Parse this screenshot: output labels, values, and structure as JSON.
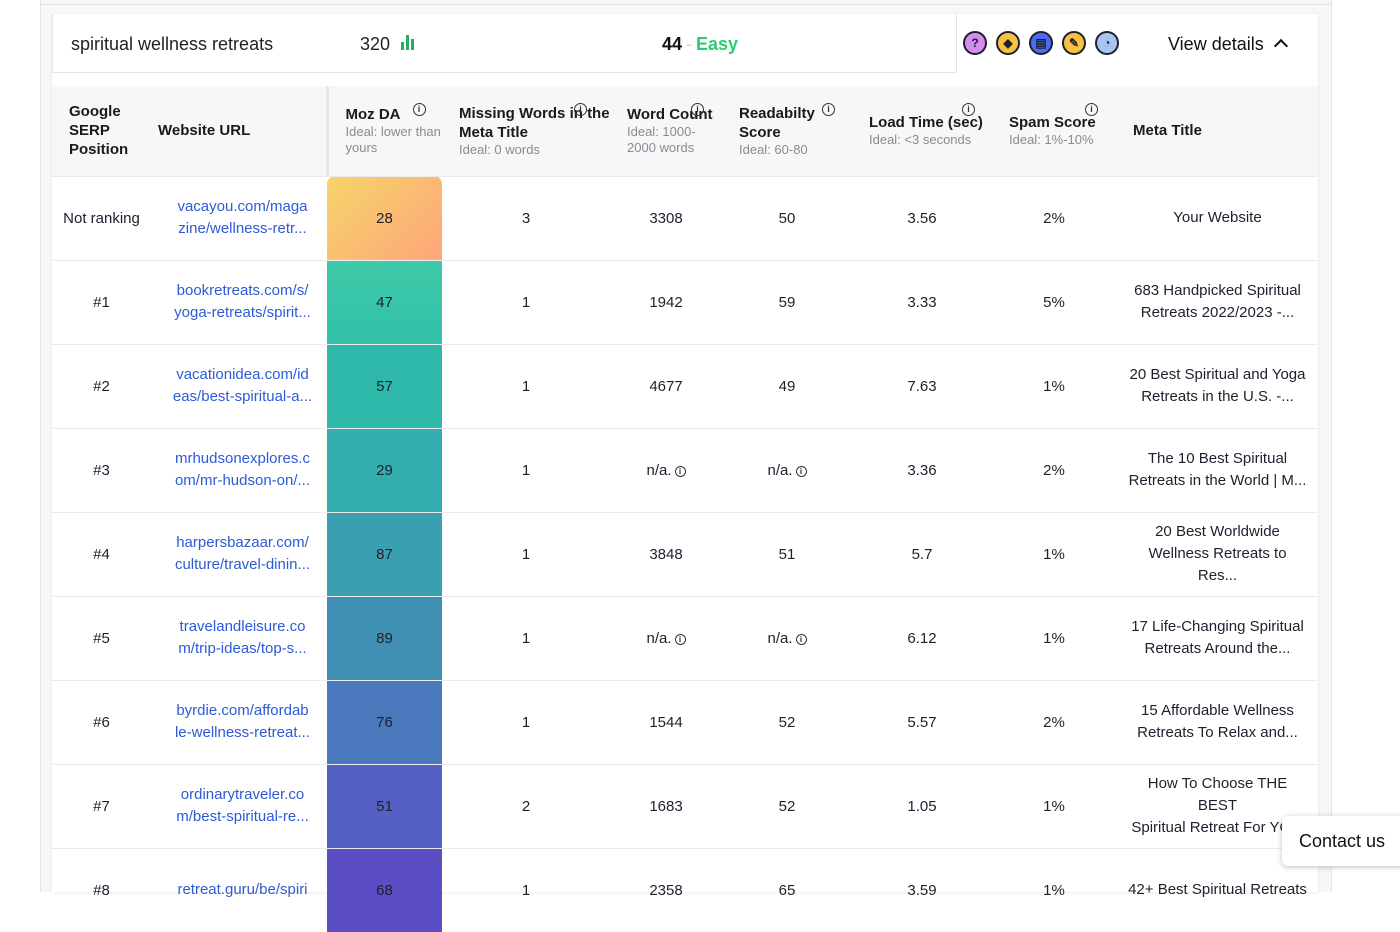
{
  "keyword": {
    "text": "spiritual wellness retreats",
    "volume": "320",
    "difficulty": "44",
    "difficulty_label": "Easy",
    "view_details": "View details"
  },
  "tools": [
    {
      "icon": "question-icon",
      "glyph": "?",
      "color": "#d38cf0"
    },
    {
      "icon": "diamond-sign-icon",
      "glyph": "◆",
      "color": "#f5c242"
    },
    {
      "icon": "document-alert-icon",
      "glyph": "▤",
      "color": "#4a6cf0"
    },
    {
      "icon": "eraser-icon",
      "glyph": "✎",
      "color": "#f5c242"
    },
    {
      "icon": "speed-gauge-icon",
      "glyph": "◔",
      "color": "#a8c4f0"
    }
  ],
  "columns": {
    "position": "Google SERP Position",
    "url": "Website URL",
    "moz": {
      "label": "Moz DA",
      "ideal": "Ideal: lower than yours"
    },
    "missing": {
      "label": "Missing Words in the Meta Title",
      "ideal": "Ideal: 0 words"
    },
    "words": {
      "label": "Word Count",
      "ideal": "Ideal: 1000-2000 words"
    },
    "read": {
      "label": "Readabilty Score",
      "ideal": "Ideal: 60-80"
    },
    "load": {
      "label": "Load Time (sec)",
      "ideal": "Ideal: <3 seconds"
    },
    "spam": {
      "label": "Spam Score",
      "ideal": "Ideal: 1%-10%"
    },
    "meta": "Meta Title"
  },
  "rows": [
    {
      "pos": "Not ranking",
      "url1": "vacayou.com/maga",
      "url2": "zine/wellness-retr...",
      "da": "28",
      "missing": "3",
      "words": "3308",
      "read": "50",
      "load": "3.56",
      "spam": "2%",
      "meta1": "Your Website",
      "meta2": ""
    },
    {
      "pos": "#1",
      "url1": "bookretreats.com/s/",
      "url2": "yoga-retreats/spirit...",
      "da": "47",
      "missing": "1",
      "words": "1942",
      "read": "59",
      "load": "3.33",
      "spam": "5%",
      "meta1": "683 Handpicked Spiritual",
      "meta2": "Retreats 2022/2023 -..."
    },
    {
      "pos": "#2",
      "url1": "vacationidea.com/id",
      "url2": "eas/best-spiritual-a...",
      "da": "57",
      "missing": "1",
      "words": "4677",
      "read": "49",
      "load": "7.63",
      "spam": "1%",
      "meta1": "20 Best Spiritual and Yoga",
      "meta2": "Retreats in the U.S. -..."
    },
    {
      "pos": "#3",
      "url1": "mrhudsonexplores.c",
      "url2": "om/mr-hudson-on/...",
      "da": "29",
      "missing": "1",
      "words": "n/a.",
      "read": "n/a.",
      "load": "3.36",
      "spam": "2%",
      "meta1": "The 10 Best Spiritual",
      "meta2": "Retreats in the World | M..."
    },
    {
      "pos": "#4",
      "url1": "harpersbazaar.com/",
      "url2": "culture/travel-dinin...",
      "da": "87",
      "missing": "1",
      "words": "3848",
      "read": "51",
      "load": "5.7",
      "spam": "1%",
      "meta1": "20 Best Worldwide",
      "meta2": "Wellness Retreats to Res..."
    },
    {
      "pos": "#5",
      "url1": "travelandleisure.co",
      "url2": "m/trip-ideas/top-s...",
      "da": "89",
      "missing": "1",
      "words": "n/a.",
      "read": "n/a.",
      "load": "6.12",
      "spam": "1%",
      "meta1": "17 Life-Changing Spiritual",
      "meta2": "Retreats Around the..."
    },
    {
      "pos": "#6",
      "url1": "byrdie.com/affordab",
      "url2": "le-wellness-retreat...",
      "da": "76",
      "missing": "1",
      "words": "1544",
      "read": "52",
      "load": "5.57",
      "spam": "2%",
      "meta1": "15 Affordable Wellness",
      "meta2": "Retreats To Relax and..."
    },
    {
      "pos": "#7",
      "url1": "ordinarytraveler.co",
      "url2": "m/best-spiritual-re...",
      "da": "51",
      "missing": "2",
      "words": "1683",
      "read": "52",
      "load": "1.05",
      "spam": "1%",
      "meta1": "How To Choose THE BEST",
      "meta2": "Spiritual Retreat For YO..."
    },
    {
      "pos": "#8",
      "url1": "retreat.guru/be/spiri",
      "url2": "",
      "da": "68",
      "missing": "1",
      "words": "2358",
      "read": "65",
      "load": "3.59",
      "spam": "1%",
      "meta1": "42+ Best Spiritual Retreats",
      "meta2": ""
    }
  ],
  "da_gradient": [
    "linear-gradient(135deg,#f7d46a,#fda57a)",
    "linear-gradient(180deg,#3ec9a8,#31c1a8)",
    "#2fb9aa",
    "#33aeae",
    "#3aa0b0",
    "#4090b4",
    "#4a78bc",
    "#5460c4",
    "#5b4ec4"
  ],
  "contact": "Contact us"
}
